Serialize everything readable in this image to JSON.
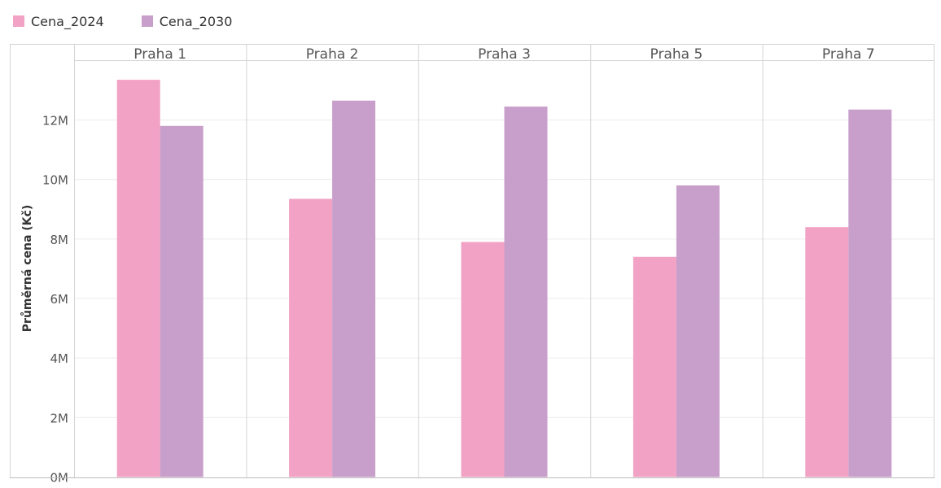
{
  "chart_data": {
    "type": "bar",
    "categories": [
      "Praha 1",
      "Praha 2",
      "Praha 3",
      "Praha 5",
      "Praha 7"
    ],
    "series": [
      {
        "name": "Cena_2024",
        "color": "#f2a2c4",
        "values": [
          13350000,
          9350000,
          7900000,
          7400000,
          8400000
        ]
      },
      {
        "name": "Cena_2030",
        "color": "#c89fca",
        "values": [
          11800000,
          12650000,
          12450000,
          9800000,
          12350000
        ]
      }
    ],
    "ylabel": "Průměrná cena (Kč)",
    "ylim": [
      0,
      14000000
    ],
    "yticks": [
      0,
      2000000,
      4000000,
      6000000,
      8000000,
      10000000,
      12000000
    ],
    "ytick_labels": [
      "0M",
      "2M",
      "4M",
      "6M",
      "8M",
      "10M",
      "12M"
    ],
    "grid": true,
    "legend": "top-left"
  }
}
